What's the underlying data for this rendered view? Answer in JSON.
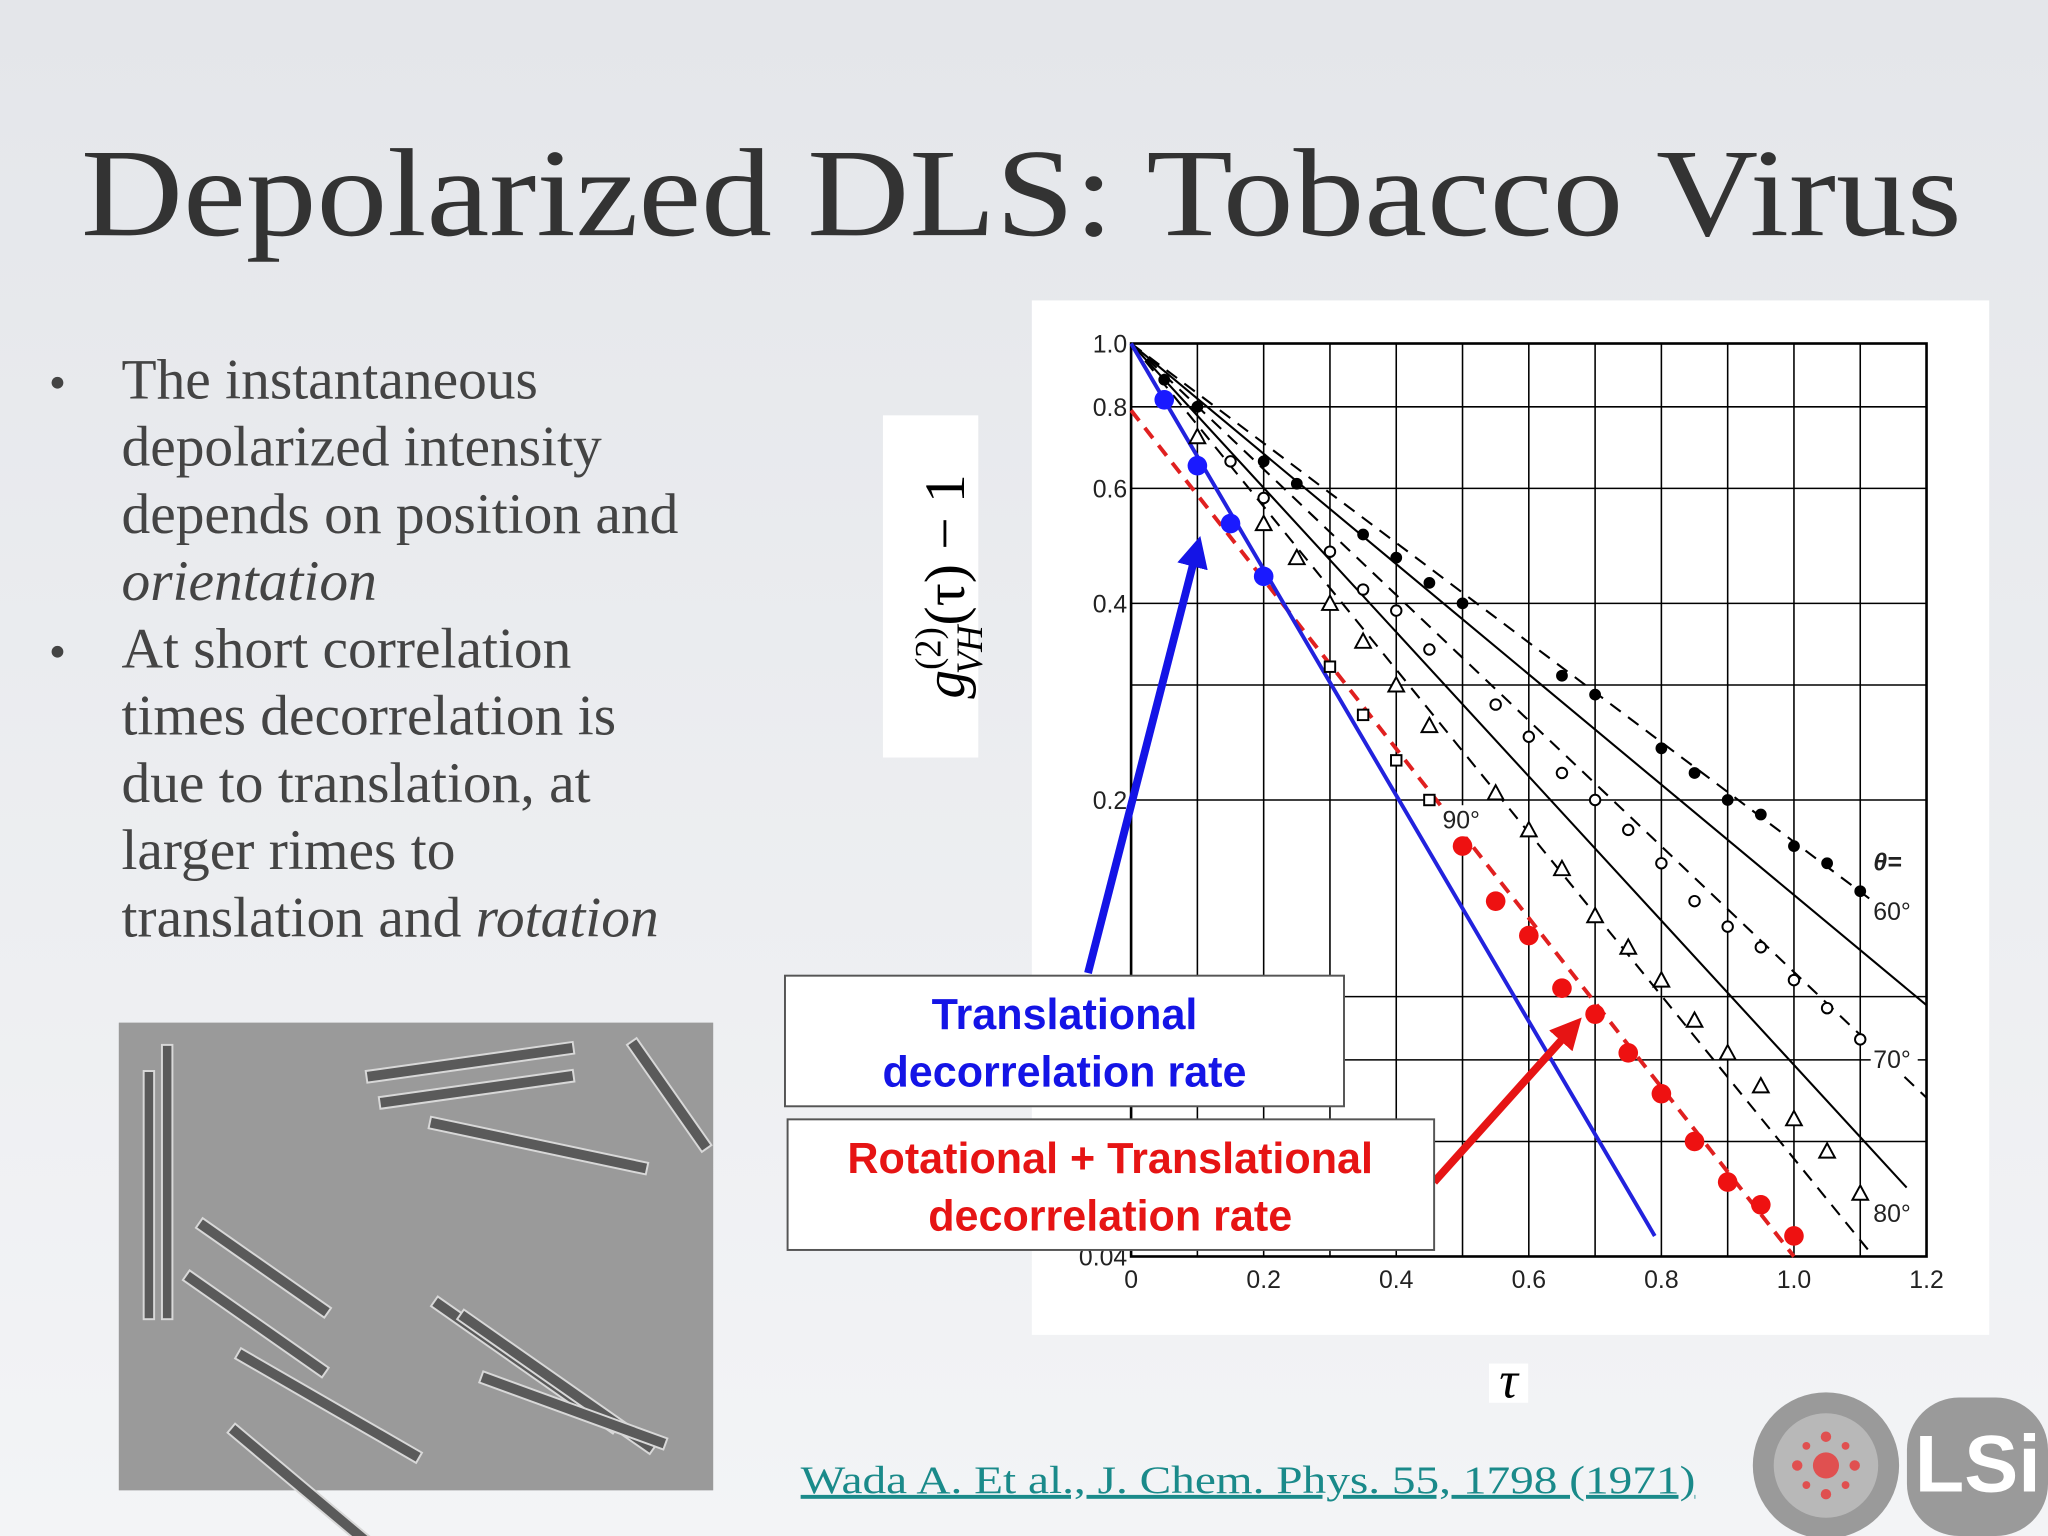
{
  "title": "Depolarized DLS: Tobacco Virus",
  "bullets": [
    {
      "lines": [
        [
          {
            "text": "The instantaneous"
          }
        ],
        [
          {
            "text": "depolarized intensity"
          }
        ],
        [
          {
            "text": "depends on position and"
          }
        ],
        [
          {
            "text": "orientation",
            "italic": true
          }
        ]
      ]
    },
    {
      "lines": [
        [
          {
            "text": "At short correlation"
          }
        ],
        [
          {
            "text": "times decorrelation is"
          }
        ],
        [
          {
            "text": "due to translation, at"
          }
        ],
        [
          {
            "text": "larger rimes to"
          }
        ],
        [
          {
            "text": "translation and "
          },
          {
            "text": "rotation",
            "italic": true
          }
        ]
      ]
    }
  ],
  "callouts": [
    {
      "lines": [
        "Translational",
        "decorrelation rate"
      ],
      "color": "#1414e6"
    },
    {
      "lines": [
        "Rotational + Translational",
        "decorrelation rate"
      ],
      "color": "#e61414"
    }
  ],
  "citation": "Wada A. Et al., J. Chem. Phys. 55, 1798 (1971)",
  "logo_text": "LSi",
  "chart_data": {
    "type": "scatter",
    "y_label": {
      "symbol": "g",
      "superscript": "(2)",
      "subscript": "VH",
      "rest": "(τ) − 1"
    },
    "x_label": "τ",
    "legend_title": "θ=",
    "log_y": true,
    "xlim": [
      0,
      1.2
    ],
    "ylim": [
      0.04,
      1
    ],
    "xticks": [
      0,
      0.2,
      0.4,
      0.6,
      0.8,
      {
        "value": 1,
        "label": "1.0"
      },
      1.2
    ],
    "yticks": [
      0.04,
      0.2,
      0.4,
      0.6,
      0.8,
      {
        "value": 1,
        "label": "1.0"
      }
    ],
    "xgrid": [
      0.1,
      0.3,
      0.5,
      0.7,
      0.9,
      1.1
    ],
    "ygrid": [
      0.06,
      0.08,
      0.1,
      0.3
    ],
    "series": [
      {
        "name": "60°",
        "marker": "dot",
        "color": "#000000",
        "x": [
          0.05,
          0.1,
          0.2,
          0.25,
          0.35,
          0.4,
          0.45,
          0.5,
          0.65,
          0.7,
          0.8,
          0.85,
          0.9,
          0.95,
          1.0,
          1.05,
          1.1
        ],
        "values": [
          0.88,
          0.8,
          0.66,
          0.61,
          0.51,
          0.47,
          0.43,
          0.4,
          0.31,
          0.29,
          0.24,
          0.22,
          0.2,
          0.19,
          0.17,
          0.16,
          0.145
        ]
      },
      {
        "name": "70°",
        "marker": "circle",
        "color": "#000000",
        "x": [
          0.15,
          0.2,
          0.3,
          0.35,
          0.4,
          0.45,
          0.55,
          0.6,
          0.65,
          0.7,
          0.75,
          0.8,
          0.85,
          0.9,
          0.95,
          1.0,
          1.05,
          1.1
        ],
        "values": [
          0.66,
          0.58,
          0.48,
          0.42,
          0.39,
          0.34,
          0.28,
          0.25,
          0.22,
          0.2,
          0.18,
          0.16,
          0.14,
          0.128,
          0.119,
          0.106,
          0.096,
          0.086
        ]
      },
      {
        "name": "80°",
        "marker": "triangle",
        "color": "#000000",
        "x": [
          0.1,
          0.2,
          0.25,
          0.3,
          0.35,
          0.4,
          0.45,
          0.55,
          0.6,
          0.65,
          0.7,
          0.75,
          0.8,
          0.85,
          0.9,
          0.95,
          1.0,
          1.05,
          1.1
        ],
        "values": [
          0.72,
          0.53,
          0.47,
          0.4,
          0.35,
          0.3,
          0.26,
          0.205,
          0.18,
          0.157,
          0.133,
          0.119,
          0.106,
          0.092,
          0.082,
          0.073,
          0.065,
          0.058,
          0.05
        ]
      },
      {
        "name": "90°",
        "marker": "square",
        "color": "#000000",
        "x": [
          0.3,
          0.35,
          0.4,
          0.45
        ],
        "values": [
          0.32,
          0.27,
          0.23,
          0.2
        ]
      },
      {
        "marker": "big",
        "color": "#1a1aff",
        "x": [
          0.05,
          0.1,
          0.15,
          0.2
        ],
        "values": [
          0.82,
          0.65,
          0.53,
          0.44
        ]
      },
      {
        "marker": "big",
        "color": "#ee1111",
        "x": [
          0.5,
          0.55,
          0.6,
          0.65,
          0.7,
          0.75,
          0.8,
          0.85,
          0.9,
          0.95,
          1.0
        ],
        "values": [
          0.17,
          0.14,
          0.124,
          0.103,
          0.094,
          0.082,
          0.071,
          0.06,
          0.052,
          0.048,
          0.043
        ]
      }
    ],
    "lines": [
      {
        "x": [
          0,
          1.17
        ],
        "values": [
          1,
          0.128
        ],
        "color": "#000000",
        "dash": true
      },
      {
        "x": [
          0,
          1.2
        ],
        "values": [
          1,
          0.097
        ],
        "color": "#000000",
        "dash": false
      },
      {
        "x": [
          0,
          1.2
        ],
        "values": [
          1,
          0.07
        ],
        "color": "#000000",
        "dash": true
      },
      {
        "x": [
          0,
          1.17
        ],
        "values": [
          1,
          0.051
        ],
        "color": "#000000",
        "dash": false
      },
      {
        "x": [
          0,
          1.12
        ],
        "values": [
          1,
          0.04
        ],
        "color": "#000000",
        "dash": true
      },
      {
        "x": [
          0,
          1.0
        ],
        "values": [
          0.79,
          0.04
        ],
        "color": "#e02020",
        "dash": true
      },
      {
        "x": [
          0,
          0.79
        ],
        "values": [
          1,
          0.043
        ],
        "color": "#2222dd",
        "dash": false
      }
    ]
  }
}
